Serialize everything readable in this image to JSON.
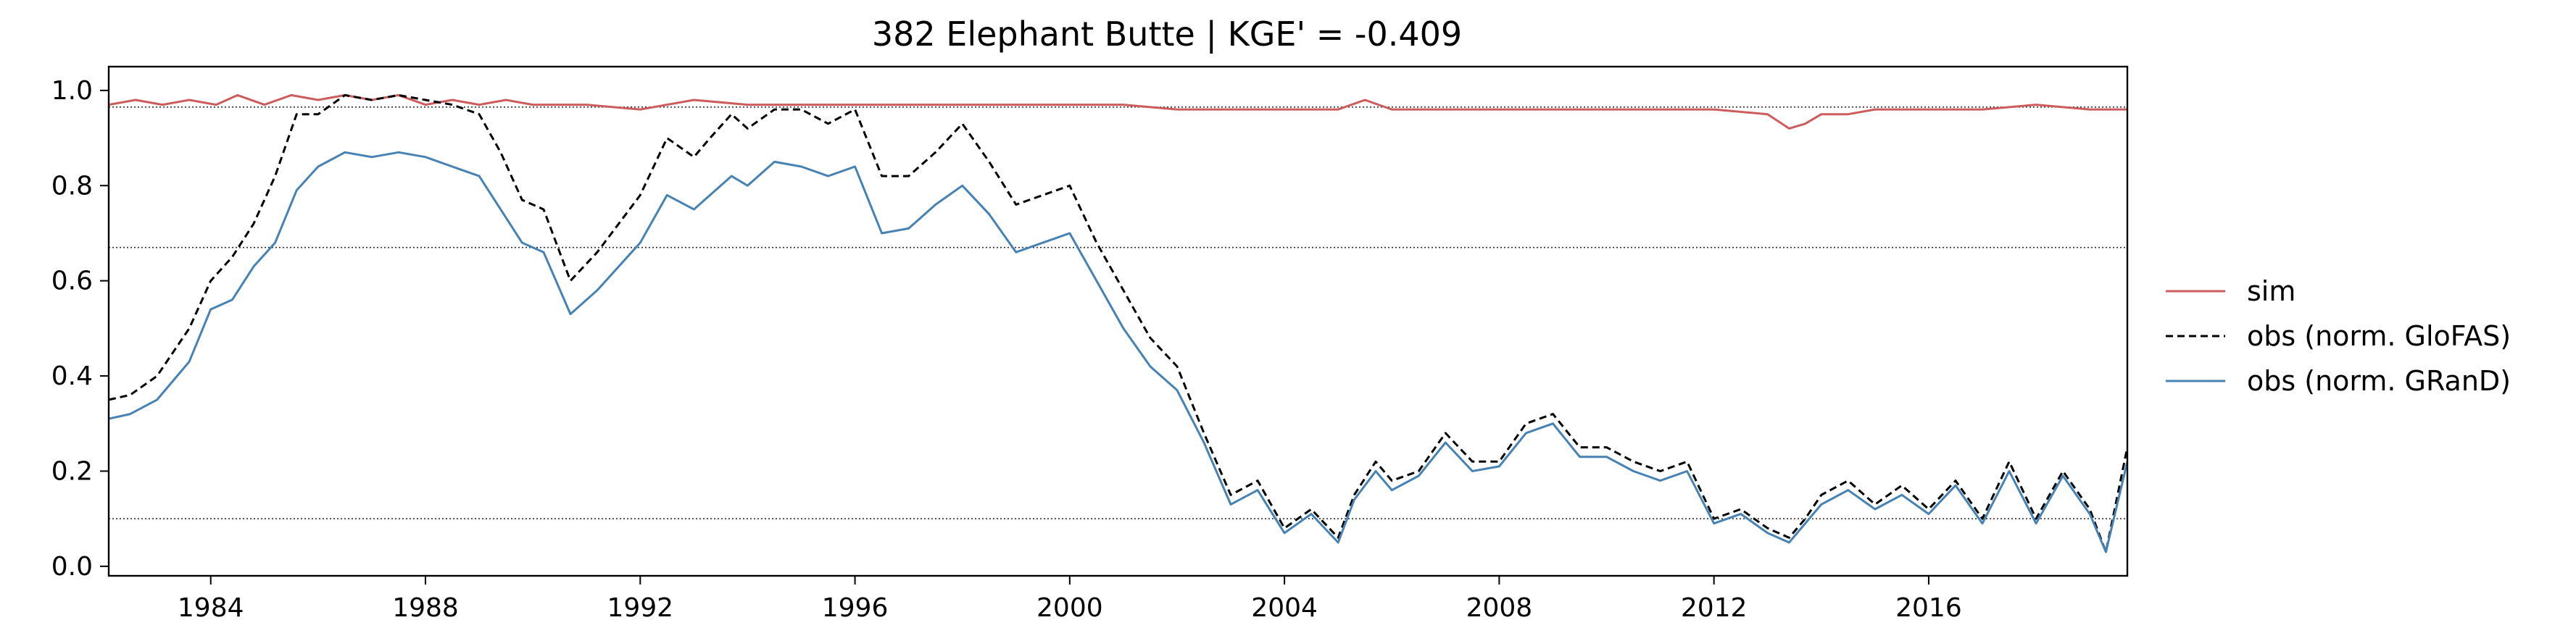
{
  "chart_data": {
    "type": "line",
    "title": "382  Elephant Butte | KGE' = -0.409",
    "xlabel": "",
    "ylabel": "",
    "xlim": [
      1982.1,
      2019.7
    ],
    "ylim": [
      -0.02,
      1.05
    ],
    "xticks": [
      1984,
      1988,
      1992,
      1996,
      2000,
      2004,
      2008,
      2012,
      2016
    ],
    "yticks": [
      0.0,
      0.2,
      0.4,
      0.6,
      0.8,
      1.0
    ],
    "ytick_labels": [
      "0.0",
      "0.2",
      "0.4",
      "0.6",
      "0.8",
      "1.0"
    ],
    "reference_lines": [
      0.965,
      0.67,
      0.1
    ],
    "grid": false,
    "legend_position": "right-outside",
    "series": [
      {
        "name": "sim",
        "color": "#cd5c5c",
        "dash": "solid",
        "x": [
          1982.1,
          1982.6,
          1983.1,
          1983.6,
          1984.1,
          1984.5,
          1985.0,
          1985.5,
          1986.0,
          1986.5,
          1987.0,
          1987.5,
          1988.0,
          1988.5,
          1989.0,
          1989.5,
          1990.0,
          1991.0,
          1992.0,
          1993.0,
          1994.0,
          1995.0,
          1996.0,
          1997.0,
          1998.0,
          1999.0,
          2000.0,
          2001.0,
          2002.0,
          2003.0,
          2004.0,
          2005.0,
          2005.5,
          2006.0,
          2007.0,
          2008.0,
          2009.0,
          2010.0,
          2011.0,
          2012.0,
          2013.0,
          2013.4,
          2013.7,
          2014.0,
          2014.5,
          2015.0,
          2016.0,
          2017.0,
          2018.0,
          2019.0,
          2019.7
        ],
        "y": [
          0.97,
          0.98,
          0.97,
          0.98,
          0.97,
          0.99,
          0.97,
          0.99,
          0.98,
          0.99,
          0.98,
          0.99,
          0.97,
          0.98,
          0.97,
          0.98,
          0.97,
          0.97,
          0.96,
          0.98,
          0.97,
          0.97,
          0.97,
          0.97,
          0.97,
          0.97,
          0.97,
          0.97,
          0.96,
          0.96,
          0.96,
          0.96,
          0.98,
          0.96,
          0.96,
          0.96,
          0.96,
          0.96,
          0.96,
          0.96,
          0.95,
          0.92,
          0.93,
          0.95,
          0.95,
          0.96,
          0.96,
          0.96,
          0.97,
          0.96,
          0.96
        ]
      },
      {
        "name": "obs (norm. GloFAS)",
        "color": "#000000",
        "dash": "dashed",
        "x": [
          1982.1,
          1982.5,
          1983.0,
          1983.3,
          1983.6,
          1984.0,
          1984.4,
          1984.8,
          1985.2,
          1985.6,
          1986.0,
          1986.5,
          1987.0,
          1987.5,
          1988.0,
          1988.5,
          1989.0,
          1989.4,
          1989.8,
          1990.2,
          1990.7,
          1991.2,
          1991.6,
          1992.0,
          1992.5,
          1993.0,
          1993.3,
          1993.7,
          1994.0,
          1994.5,
          1995.0,
          1995.5,
          1996.0,
          1996.5,
          1997.0,
          1997.5,
          1998.0,
          1998.5,
          1999.0,
          1999.5,
          2000.0,
          2000.5,
          2001.0,
          2001.5,
          2002.0,
          2002.5,
          2003.0,
          2003.5,
          2004.0,
          2004.5,
          2005.0,
          2005.3,
          2005.7,
          2006.0,
          2006.5,
          2007.0,
          2007.5,
          2008.0,
          2008.5,
          2009.0,
          2009.5,
          2010.0,
          2010.5,
          2011.0,
          2011.5,
          2012.0,
          2012.5,
          2013.0,
          2013.4,
          2013.7,
          2014.0,
          2014.5,
          2015.0,
          2015.5,
          2016.0,
          2016.5,
          2017.0,
          2017.5,
          2018.0,
          2018.5,
          2019.0,
          2019.3,
          2019.7
        ],
        "y": [
          0.35,
          0.36,
          0.4,
          0.45,
          0.5,
          0.6,
          0.65,
          0.72,
          0.82,
          0.95,
          0.95,
          0.99,
          0.98,
          0.99,
          0.98,
          0.97,
          0.95,
          0.87,
          0.77,
          0.75,
          0.6,
          0.66,
          0.72,
          0.78,
          0.9,
          0.86,
          0.9,
          0.95,
          0.92,
          0.96,
          0.96,
          0.93,
          0.96,
          0.82,
          0.82,
          0.87,
          0.93,
          0.85,
          0.76,
          0.78,
          0.8,
          0.68,
          0.58,
          0.48,
          0.42,
          0.28,
          0.15,
          0.18,
          0.08,
          0.12,
          0.06,
          0.15,
          0.22,
          0.18,
          0.2,
          0.28,
          0.22,
          0.22,
          0.3,
          0.32,
          0.25,
          0.25,
          0.22,
          0.2,
          0.22,
          0.1,
          0.12,
          0.08,
          0.06,
          0.1,
          0.15,
          0.18,
          0.13,
          0.17,
          0.12,
          0.18,
          0.1,
          0.22,
          0.1,
          0.2,
          0.12,
          0.03,
          0.25
        ]
      },
      {
        "name": "obs (norm. GRanD)",
        "color": "#4682b4",
        "dash": "solid",
        "x": [
          1982.1,
          1982.5,
          1983.0,
          1983.3,
          1983.6,
          1984.0,
          1984.4,
          1984.8,
          1985.2,
          1985.6,
          1986.0,
          1986.5,
          1987.0,
          1987.5,
          1988.0,
          1988.5,
          1989.0,
          1989.4,
          1989.8,
          1990.2,
          1990.7,
          1991.2,
          1991.6,
          1992.0,
          1992.5,
          1993.0,
          1993.3,
          1993.7,
          1994.0,
          1994.5,
          1995.0,
          1995.5,
          1996.0,
          1996.5,
          1997.0,
          1997.5,
          1998.0,
          1998.5,
          1999.0,
          1999.5,
          2000.0,
          2000.5,
          2001.0,
          2001.5,
          2002.0,
          2002.5,
          2003.0,
          2003.5,
          2004.0,
          2004.5,
          2005.0,
          2005.3,
          2005.7,
          2006.0,
          2006.5,
          2007.0,
          2007.5,
          2008.0,
          2008.5,
          2009.0,
          2009.5,
          2010.0,
          2010.5,
          2011.0,
          2011.5,
          2012.0,
          2012.5,
          2013.0,
          2013.4,
          2013.7,
          2014.0,
          2014.5,
          2015.0,
          2015.5,
          2016.0,
          2016.5,
          2017.0,
          2017.5,
          2018.0,
          2018.5,
          2019.0,
          2019.3,
          2019.7
        ],
        "y": [
          0.31,
          0.32,
          0.35,
          0.39,
          0.43,
          0.54,
          0.56,
          0.63,
          0.68,
          0.79,
          0.84,
          0.87,
          0.86,
          0.87,
          0.86,
          0.84,
          0.82,
          0.75,
          0.68,
          0.66,
          0.53,
          0.58,
          0.63,
          0.68,
          0.78,
          0.75,
          0.78,
          0.82,
          0.8,
          0.85,
          0.84,
          0.82,
          0.84,
          0.7,
          0.71,
          0.76,
          0.8,
          0.74,
          0.66,
          0.68,
          0.7,
          0.6,
          0.5,
          0.42,
          0.37,
          0.26,
          0.13,
          0.16,
          0.07,
          0.11,
          0.05,
          0.14,
          0.2,
          0.16,
          0.19,
          0.26,
          0.2,
          0.21,
          0.28,
          0.3,
          0.23,
          0.23,
          0.2,
          0.18,
          0.2,
          0.09,
          0.11,
          0.07,
          0.05,
          0.09,
          0.13,
          0.16,
          0.12,
          0.15,
          0.11,
          0.17,
          0.09,
          0.2,
          0.09,
          0.19,
          0.11,
          0.03,
          0.22
        ]
      }
    ]
  }
}
